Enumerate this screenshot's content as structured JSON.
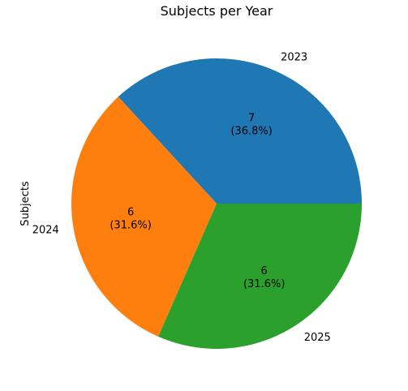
{
  "chart_data": {
    "type": "pie",
    "title": "Subjects per Year",
    "ylabel": "Subjects",
    "categories": [
      "2023",
      "2024",
      "2025"
    ],
    "values": [
      7,
      6,
      6
    ],
    "percent_labels": [
      "(36.8%)",
      "(31.6%)",
      "(31.6%)"
    ],
    "colors": [
      "#1f77b4",
      "#ff7f0e",
      "#2ca02c"
    ],
    "start_angle_deg": 0,
    "direction": "counterclockwise"
  }
}
